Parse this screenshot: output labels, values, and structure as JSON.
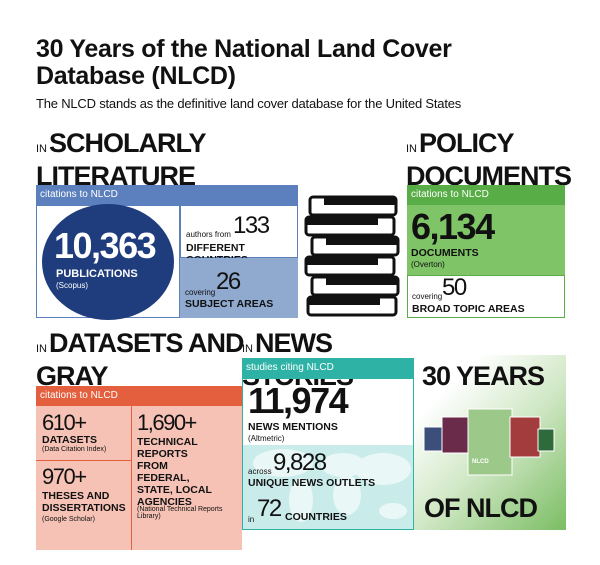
{
  "header": {
    "title": "30 Years of the National Land Cover Database (NLCD)",
    "subtitle": "The NLCD stands as the definitive land cover database for the United States"
  },
  "scholarly": {
    "prefix": "IN",
    "heading": "SCHOLARLY LITERATURE",
    "bar": "citations to NLCD",
    "publications": {
      "value": "10,363",
      "label": "PUBLICATIONS",
      "source": "(Scopus)"
    },
    "authors": {
      "prefix": "authors from",
      "value": "133",
      "label": "DIFFERENT COUNTRIES"
    },
    "subjects": {
      "prefix": "covering",
      "value": "26",
      "label": "SUBJECT AREAS"
    }
  },
  "policy": {
    "prefix": "IN",
    "heading": "POLICY DOCUMENTS",
    "bar": "citations to NLCD",
    "documents": {
      "value": "6,134",
      "label": "DOCUMENTS",
      "source": "(Overton)"
    },
    "topics": {
      "prefix": "covering",
      "value": "50",
      "label": "BROAD TOPIC AREAS"
    }
  },
  "datasets": {
    "prefix": "IN",
    "heading": "DATASETS AND GRAY LITERATURE",
    "bar": "citations to NLCD",
    "datasets": {
      "value": "610+",
      "label": "DATASETS",
      "source": "(Data Citation Index)"
    },
    "theses": {
      "value": "970+",
      "label": "THESES AND DISSERTATIONS",
      "source": "(Google Scholar)"
    },
    "reports": {
      "value": "1,690+",
      "label": "TECHNICAL REPORTS FROM FEDERAL, STATE, LOCAL AGENCIES",
      "source": "(National Technical Reports Library)"
    }
  },
  "news": {
    "prefix": "IN",
    "heading": "NEWS STORIES",
    "bar": "studies citing NLCD",
    "mentions": {
      "value": "11,974",
      "label": "NEWS MENTIONS",
      "source": "(Altmetric)"
    },
    "outlets": {
      "prefix": "across",
      "value": "9,828",
      "label": "UNIQUE NEWS OUTLETS"
    },
    "countries": {
      "prefix": "in",
      "value": "72",
      "label": "COUNTRIES"
    }
  },
  "anniversary": {
    "top": "30 YEARS",
    "bottom": "OF NLCD",
    "map_label": "NLCD"
  }
}
